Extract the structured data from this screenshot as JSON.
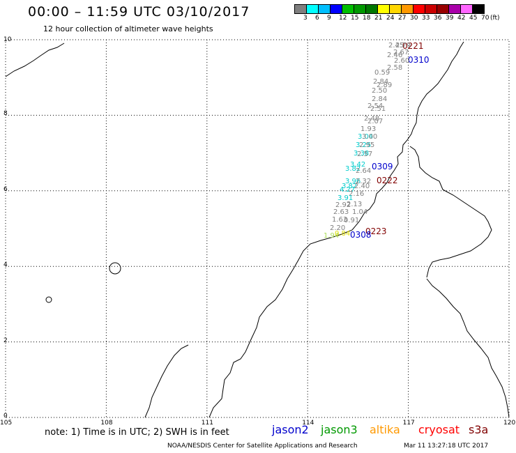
{
  "header": {
    "title": "00:00 – 11:59 UTC 03/10/2017",
    "subtitle": "12 hour collection of altimeter wave heights"
  },
  "legend": {
    "unit": "(ft)",
    "bins": [
      {
        "label": "3",
        "color": "#7f7f7f"
      },
      {
        "label": "6",
        "color": "#00ffff"
      },
      {
        "label": "9",
        "color": "#00bfff"
      },
      {
        "label": "12",
        "color": "#0000ff"
      },
      {
        "label": "15",
        "color": "#00bf00"
      },
      {
        "label": "18",
        "color": "#009900"
      },
      {
        "label": "21",
        "color": "#007700"
      },
      {
        "label": "24",
        "color": "#ffff00"
      },
      {
        "label": "27",
        "color": "#ffd700"
      },
      {
        "label": "30",
        "color": "#ff9900"
      },
      {
        "label": "33",
        "color": "#ff0000"
      },
      {
        "label": "36",
        "color": "#cc0000"
      },
      {
        "label": "39",
        "color": "#990000"
      },
      {
        "label": "42",
        "color": "#aa00aa"
      },
      {
        "label": "45",
        "color": "#ff66ff"
      },
      {
        "label": "70",
        "color": "#000000"
      }
    ]
  },
  "axes": {
    "lon_ticks": [
      "105",
      "108",
      "111",
      "114",
      "117",
      "120"
    ],
    "lat_ticks": [
      "0",
      "2",
      "4",
      "6",
      "8",
      "10"
    ]
  },
  "tracks": [
    {
      "time": "0221",
      "color": "#800000"
    },
    {
      "time": "0310",
      "color": "#0000cc"
    },
    {
      "time": "0309",
      "color": "#0000cc"
    },
    {
      "time": "0222",
      "color": "#800000"
    },
    {
      "time": "0223",
      "color": "#800000"
    },
    {
      "time": "0308",
      "color": "#0000cc"
    }
  ],
  "observations": [
    {
      "value": "2.45",
      "color": "#808080"
    },
    {
      "value": "2.79",
      "color": "#808080"
    },
    {
      "value": "2.67",
      "color": "#808080"
    },
    {
      "value": "2.46",
      "color": "#808080"
    },
    {
      "value": "2.60",
      "color": "#808080"
    },
    {
      "value": "2.58",
      "color": "#808080"
    },
    {
      "value": "0.59",
      "color": "#808080"
    },
    {
      "value": "2.84",
      "color": "#808080"
    },
    {
      "value": "2.89",
      "color": "#808080"
    },
    {
      "value": "2.50",
      "color": "#808080"
    },
    {
      "value": "2.84",
      "color": "#808080"
    },
    {
      "value": "2.54",
      "color": "#808080"
    },
    {
      "value": "2.51",
      "color": "#808080"
    },
    {
      "value": "2.48",
      "color": "#808080"
    },
    {
      "value": "2.07",
      "color": "#808080"
    },
    {
      "value": "1.93",
      "color": "#808080"
    },
    {
      "value": "3.04",
      "color": "#00cccc"
    },
    {
      "value": "3.00",
      "color": "#808080"
    },
    {
      "value": "3.25",
      "color": "#00cccc"
    },
    {
      "value": "2.95",
      "color": "#808080"
    },
    {
      "value": "3.38",
      "color": "#00cccc"
    },
    {
      "value": "2.57",
      "color": "#808080"
    },
    {
      "value": "3.42",
      "color": "#00cccc"
    },
    {
      "value": "3.82",
      "color": "#00cccc"
    },
    {
      "value": "2.64",
      "color": "#808080"
    },
    {
      "value": "3.96",
      "color": "#00cccc"
    },
    {
      "value": "2.32",
      "color": "#808080"
    },
    {
      "value": "3.82",
      "color": "#00cccc"
    },
    {
      "value": "2.40",
      "color": "#808080"
    },
    {
      "value": "4.27",
      "color": "#00cccc"
    },
    {
      "value": "2.16",
      "color": "#808080"
    },
    {
      "value": "3.91",
      "color": "#00cccc"
    },
    {
      "value": "2.92",
      "color": "#808080"
    },
    {
      "value": "2.13",
      "color": "#808080"
    },
    {
      "value": "2.63",
      "color": "#808080"
    },
    {
      "value": "1.04",
      "color": "#808080"
    },
    {
      "value": "1.63",
      "color": "#808080"
    },
    {
      "value": "0.91",
      "color": "#808080"
    },
    {
      "value": "2.20",
      "color": "#808080"
    },
    {
      "value": "1.94",
      "color": "#aadd55"
    },
    {
      "value": "0.84",
      "color": "#dddd00"
    }
  ],
  "footer": {
    "note": "note: 1) Time is in UTC; 2) SWH is in feet",
    "satellites": [
      {
        "name": "jason2",
        "color": "#0000cc"
      },
      {
        "name": "jason3",
        "color": "#009900"
      },
      {
        "name": "altika",
        "color": "#ff9900"
      },
      {
        "name": "cryosat",
        "color": "#ff0000"
      },
      {
        "name": "s3a",
        "color": "#800000"
      }
    ],
    "credit": "NOAA/NESDIS Center for Satellite Applications and Research",
    "timestamp": "Mar 11 13:27:18 UTC 2017"
  }
}
